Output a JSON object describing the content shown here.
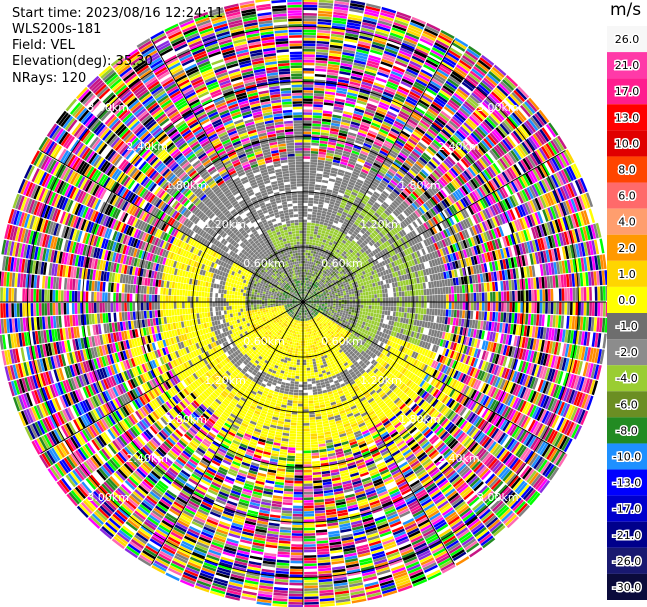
{
  "header": {
    "start_time": "Start time: 2023/08/16 12:24:11",
    "instrument": "WLS200s-181",
    "field": "Field: VEL",
    "elevation": "Elevation(deg): 35.30",
    "nrays": "NRays: 120"
  },
  "chart_data": {
    "type": "ppi",
    "field": "VEL",
    "unit": "m/s",
    "nrays": 120,
    "elevation_deg": 35.3,
    "range_rings_km": [
      0.6,
      1.2,
      1.8,
      2.4,
      3.0
    ],
    "range_labels": [
      "0.60km",
      "1.20km",
      "1.80km",
      "2.40km",
      "3.00km"
    ],
    "colorbar": {
      "label": "m/s",
      "ticks": [
        "26.0",
        "21.0",
        "17.0",
        "13.0",
        "10.0",
        "8.0",
        "6.0",
        "4.0",
        "2.0",
        "1.0",
        "0.0",
        "-1.0",
        "-2.0",
        "-4.0",
        "-6.0",
        "-8.0",
        "-10.0",
        "-13.0",
        "-17.0",
        "-21.0",
        "-26.0",
        "-30.0"
      ],
      "colors": [
        "#f7f7f7",
        "#ff3aa8",
        "#ff1d8f",
        "#ff0000",
        "#e00000",
        "#ff4500",
        "#ff6a6a",
        "#ff9e6e",
        "#ff9900",
        "#ffd500",
        "#ffff00",
        "#6e6e6e",
        "#8c8c8c",
        "#9acd32",
        "#6b8e23",
        "#228b22",
        "#1e90ff",
        "#0000ff",
        "#0000cd",
        "#00008b",
        "#191970",
        "#0b0b3b"
      ]
    },
    "structure": {
      "inner_gray_ring_km": [
        0.0,
        0.62
      ],
      "inner_green_ring_km": [
        0.55,
        0.85
      ],
      "yellow_band_km": [
        0.9,
        1.55
      ],
      "noise_start_km": 1.6
    }
  }
}
